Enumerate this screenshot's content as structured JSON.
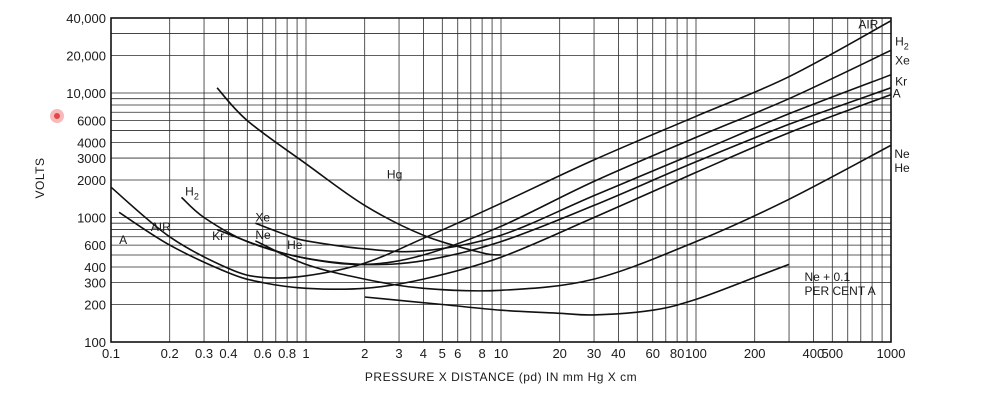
{
  "chart_data": {
    "type": "line",
    "xscale": "log",
    "yscale": "log",
    "xlim": [
      0.1,
      1000
    ],
    "ylim": [
      100,
      40000
    ],
    "xlabel": "PRESSURE X DISTANCE (pd) IN mm Hg X cm",
    "ylabel": "VOLTS",
    "grid": true,
    "x_ticks": [
      {
        "v": 0.1,
        "t": "0.1"
      },
      {
        "v": 0.2,
        "t": "0.2"
      },
      {
        "v": 0.3,
        "t": "0.3"
      },
      {
        "v": 0.4,
        "t": "0.4"
      },
      {
        "v": 0.6,
        "t": "0.6"
      },
      {
        "v": 0.8,
        "t": "0.8"
      },
      {
        "v": 1,
        "t": "1"
      },
      {
        "v": 2,
        "t": "2"
      },
      {
        "v": 3,
        "t": "3"
      },
      {
        "v": 4,
        "t": "4"
      },
      {
        "v": 5,
        "t": "5"
      },
      {
        "v": 6,
        "t": "6"
      },
      {
        "v": 8,
        "t": "8"
      },
      {
        "v": 10,
        "t": "10"
      },
      {
        "v": 20,
        "t": "20"
      },
      {
        "v": 30,
        "t": "30"
      },
      {
        "v": 40,
        "t": "40"
      },
      {
        "v": 60,
        "t": "60"
      },
      {
        "v": 80,
        "t": "80"
      },
      {
        "v": 100,
        "t": "100"
      },
      {
        "v": 200,
        "t": "200"
      },
      {
        "v": 400,
        "t": "400"
      },
      {
        "v": 500,
        "t": "500"
      },
      {
        "v": 1000,
        "t": "1000"
      }
    ],
    "x_grid": [
      0.1,
      0.2,
      0.3,
      0.4,
      0.5,
      0.6,
      0.7,
      0.8,
      0.9,
      1,
      2,
      3,
      4,
      5,
      6,
      7,
      8,
      9,
      10,
      20,
      30,
      40,
      50,
      60,
      70,
      80,
      90,
      100,
      200,
      300,
      400,
      500,
      600,
      700,
      800,
      900,
      1000
    ],
    "y_ticks": [
      {
        "v": 100,
        "t": "100"
      },
      {
        "v": 200,
        "t": "200"
      },
      {
        "v": 300,
        "t": "300"
      },
      {
        "v": 400,
        "t": "400"
      },
      {
        "v": 600,
        "t": "600"
      },
      {
        "v": 1000,
        "t": "1000"
      },
      {
        "v": 2000,
        "t": "2000"
      },
      {
        "v": 3000,
        "t": "3000"
      },
      {
        "v": 4000,
        "t": "4000"
      },
      {
        "v": 6000,
        "t": "6000"
      },
      {
        "v": 10000,
        "t": "10,000"
      },
      {
        "v": 20000,
        "t": "20,000"
      },
      {
        "v": 40000,
        "t": "40,000"
      }
    ],
    "y_grid": [
      100,
      200,
      300,
      400,
      500,
      600,
      700,
      800,
      900,
      1000,
      2000,
      3000,
      4000,
      5000,
      6000,
      7000,
      8000,
      9000,
      10000,
      20000,
      30000,
      40000
    ],
    "series": [
      {
        "name": "AIR",
        "label_lines": [
          "AIR"
        ],
        "label_at": [
          680,
          33000
        ],
        "points": [
          [
            0.1,
            1750
          ],
          [
            0.2,
            700
          ],
          [
            0.4,
            390
          ],
          [
            0.6,
            330
          ],
          [
            1,
            340
          ],
          [
            2,
            430
          ],
          [
            4,
            680
          ],
          [
            10,
            1300
          ],
          [
            30,
            2900
          ],
          [
            100,
            6500
          ],
          [
            300,
            13500
          ],
          [
            1000,
            38000
          ]
        ]
      },
      {
        "name": "H2",
        "label_lines": [
          "H2"
        ],
        "label_at": [
          1050,
          24000
        ],
        "points": [
          [
            0.23,
            1450
          ],
          [
            0.3,
            1000
          ],
          [
            0.5,
            640
          ],
          [
            1,
            470
          ],
          [
            2,
            420
          ],
          [
            4,
            500
          ],
          [
            10,
            850
          ],
          [
            30,
            1950
          ],
          [
            100,
            4400
          ],
          [
            300,
            9000
          ],
          [
            1000,
            22000
          ]
        ]
      },
      {
        "name": "Xe",
        "label_lines": [
          "Xe"
        ],
        "label_at": [
          1050,
          17000
        ],
        "points": [
          [
            0.55,
            900
          ],
          [
            0.8,
            720
          ],
          [
            1,
            650
          ],
          [
            2,
            560
          ],
          [
            4,
            540
          ],
          [
            10,
            720
          ],
          [
            30,
            1500
          ],
          [
            100,
            3300
          ],
          [
            300,
            6800
          ],
          [
            1000,
            14000
          ]
        ]
      },
      {
        "name": "Kr",
        "label_lines": [
          "Kr"
        ],
        "label_at": [
          1050,
          11500
        ],
        "points": [
          [
            0.35,
            800
          ],
          [
            0.6,
            580
          ],
          [
            1,
            470
          ],
          [
            2,
            420
          ],
          [
            4,
            450
          ],
          [
            10,
            640
          ],
          [
            30,
            1250
          ],
          [
            100,
            2800
          ],
          [
            300,
            5600
          ],
          [
            1000,
            11000
          ]
        ]
      },
      {
        "name": "A",
        "label_lines": [
          "A"
        ],
        "label_at": [
          1020,
          9200
        ],
        "points": [
          [
            0.11,
            1100
          ],
          [
            0.2,
            600
          ],
          [
            0.4,
            360
          ],
          [
            0.6,
            300
          ],
          [
            1,
            270
          ],
          [
            2,
            270
          ],
          [
            4,
            320
          ],
          [
            10,
            480
          ],
          [
            30,
            1000
          ],
          [
            100,
            2300
          ],
          [
            300,
            4800
          ],
          [
            1000,
            9700
          ]
        ]
      },
      {
        "name": "Ne He",
        "label_lines": [
          "Ne",
          "He"
        ],
        "label_at": [
          1040,
          3000
        ],
        "points": [
          [
            0.55,
            650
          ],
          [
            1,
            420
          ],
          [
            2,
            320
          ],
          [
            4,
            270
          ],
          [
            10,
            260
          ],
          [
            30,
            320
          ],
          [
            100,
            640
          ],
          [
            300,
            1400
          ],
          [
            1000,
            3800
          ]
        ]
      },
      {
        "name": "Ne + 0.1 PER CENT A",
        "label_lines": [
          "Ne + 0.1",
          "PER CENT A"
        ],
        "label_at": [
          360,
          310
        ],
        "points": [
          [
            2,
            230
          ],
          [
            5,
            200
          ],
          [
            10,
            180
          ],
          [
            20,
            170
          ],
          [
            30,
            165
          ],
          [
            60,
            180
          ],
          [
            100,
            220
          ],
          [
            200,
            330
          ],
          [
            300,
            420
          ]
        ]
      },
      {
        "name": "Hg",
        "label_lines": [
          "Hg"
        ],
        "label_at": [
          2.6,
          2050
        ],
        "points": [
          [
            0.35,
            11000
          ],
          [
            0.5,
            6000
          ],
          [
            1,
            2700
          ],
          [
            2,
            1250
          ],
          [
            4,
            720
          ],
          [
            8,
            520
          ],
          [
            10,
            500
          ]
        ]
      }
    ],
    "inline_labels": [
      {
        "text": "Xe",
        "at": [
          0.55,
          930
        ]
      },
      {
        "text": "Ne",
        "at": [
          0.55,
          670
        ]
      },
      {
        "text": "He",
        "at": [
          0.8,
          560
        ]
      },
      {
        "text": "Kr",
        "at": [
          0.33,
          660
        ]
      },
      {
        "text": "AIR",
        "at": [
          0.16,
          780
        ]
      },
      {
        "text": "A",
        "at": [
          0.11,
          610
        ]
      },
      {
        "text": "H2",
        "at": [
          0.24,
          1500
        ]
      }
    ]
  }
}
